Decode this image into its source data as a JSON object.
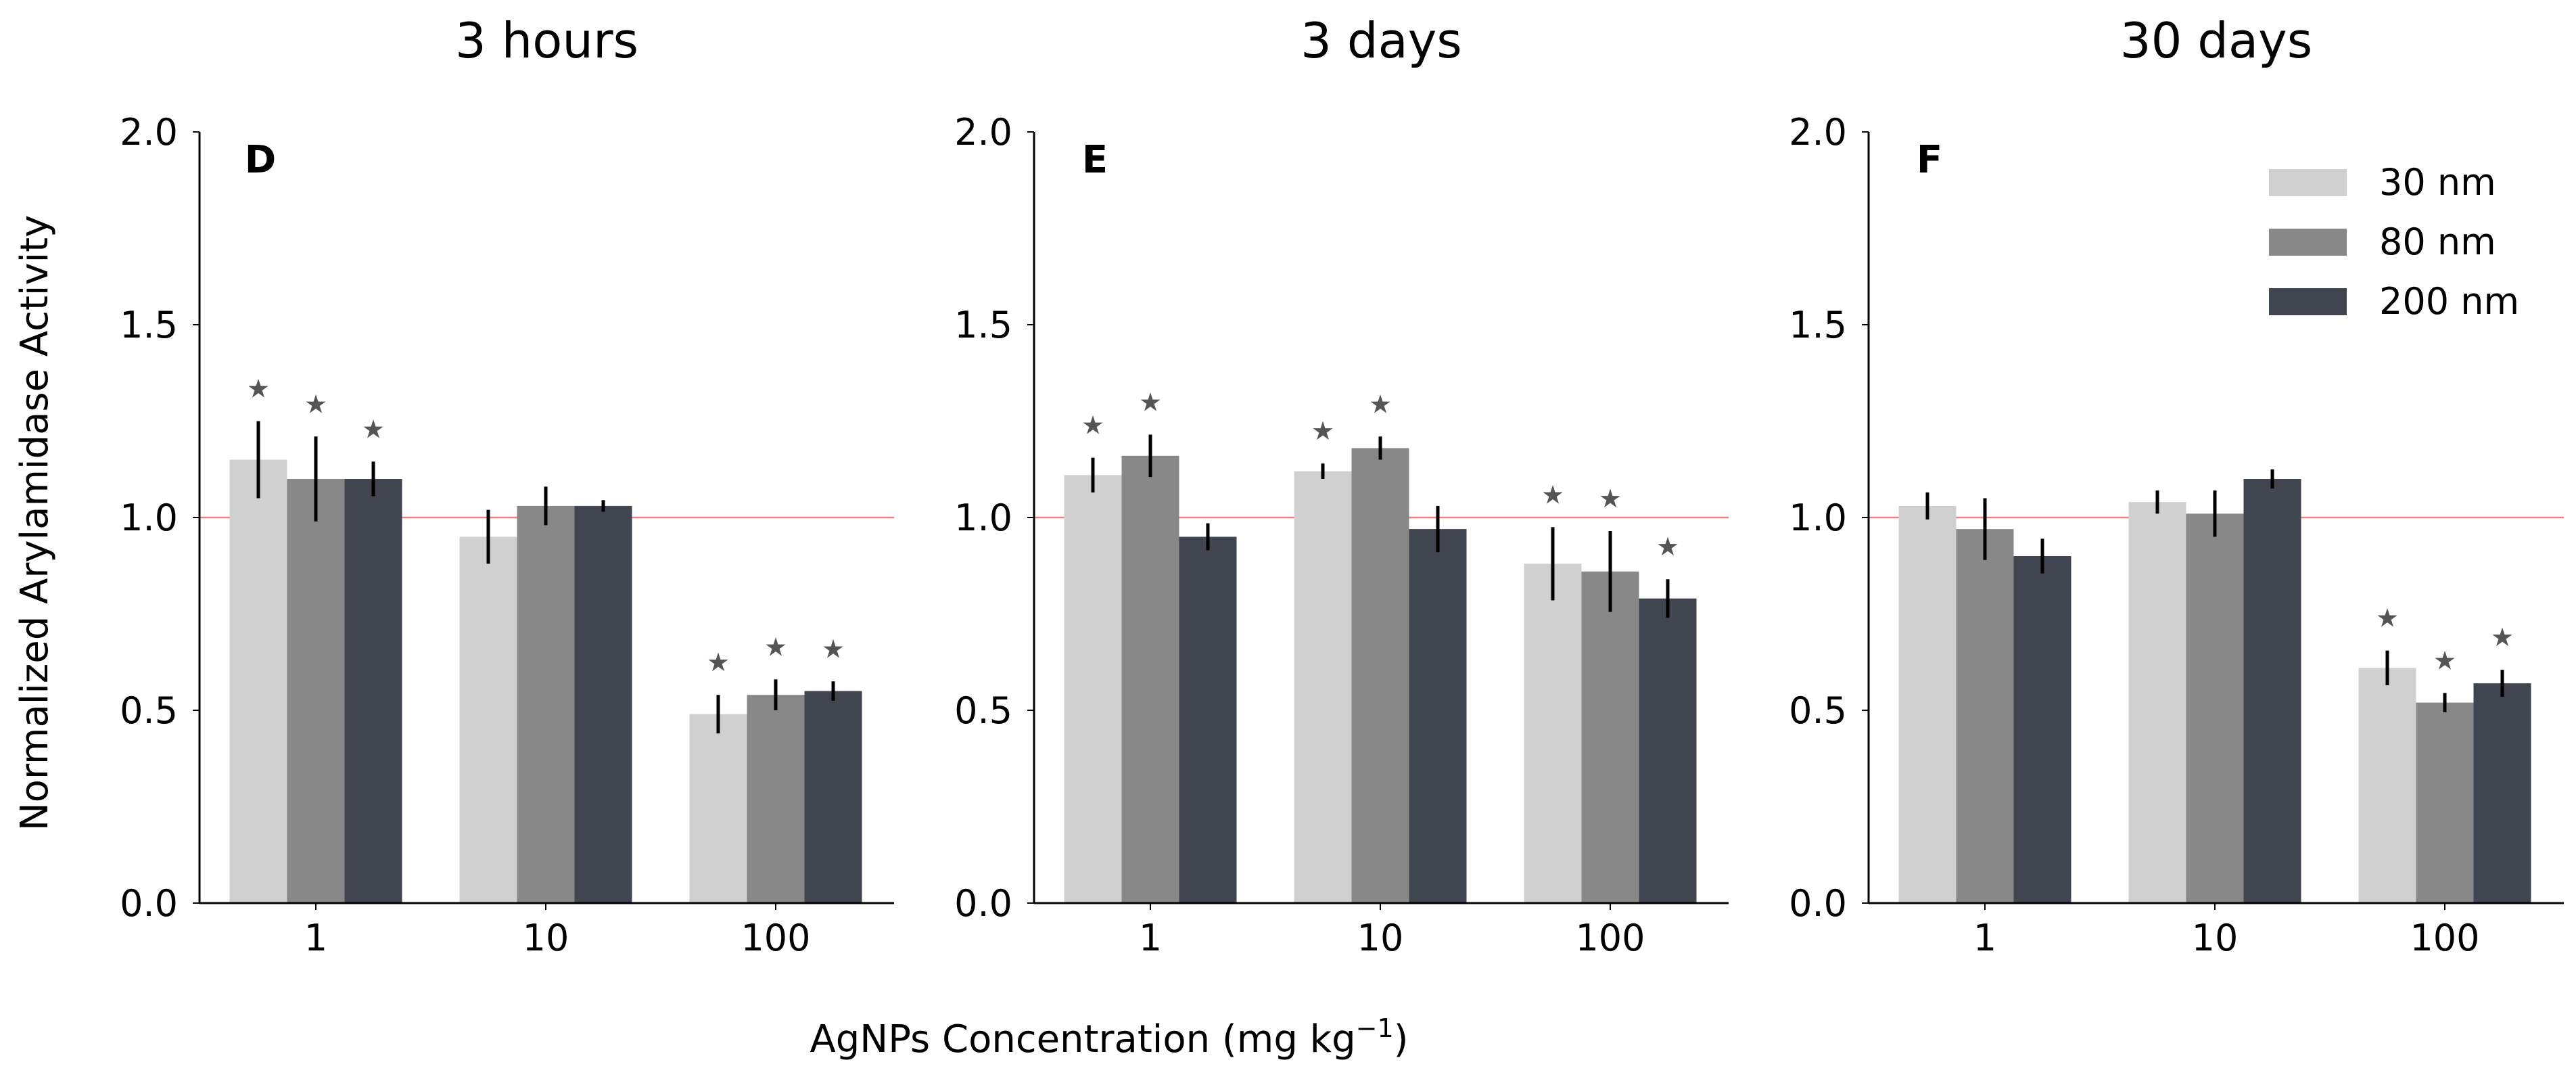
{
  "figure": {
    "ylabel": "Normalized Arylamidase Activity",
    "xlabel_main": "AgNPs Concentration (mg kg",
    "xlabel_sup": "−1",
    "xlabel_end": ")"
  },
  "chart_data": [
    {
      "type": "bar",
      "title": "3 hours",
      "panel_label": "D",
      "categories": [
        "1",
        "10",
        "100"
      ],
      "ylim": [
        0,
        2.0
      ],
      "yticks": [
        "0.0",
        "0.5",
        "1.0",
        "1.5",
        "2.0"
      ],
      "reference_line": 1.0,
      "series": [
        {
          "name": "30 nm",
          "values": [
            1.15,
            0.95,
            0.49
          ],
          "errors": [
            0.1,
            0.07,
            0.05
          ],
          "significant": [
            true,
            false,
            true
          ]
        },
        {
          "name": "80 nm",
          "values": [
            1.1,
            1.03,
            0.54
          ],
          "errors": [
            0.11,
            0.05,
            0.04
          ],
          "significant": [
            true,
            false,
            true
          ]
        },
        {
          "name": "200 nm",
          "values": [
            1.1,
            1.03,
            0.55
          ],
          "errors": [
            0.045,
            0.015,
            0.025
          ],
          "significant": [
            true,
            false,
            true
          ]
        }
      ]
    },
    {
      "type": "bar",
      "title": "3 days",
      "panel_label": "E",
      "categories": [
        "1",
        "10",
        "100"
      ],
      "ylim": [
        0,
        2.0
      ],
      "yticks": [
        "0.0",
        "0.5",
        "1.0",
        "1.5",
        "2.0"
      ],
      "reference_line": 1.0,
      "series": [
        {
          "name": "30 nm",
          "values": [
            1.11,
            1.12,
            0.88
          ],
          "errors": [
            0.045,
            0.02,
            0.095
          ],
          "significant": [
            true,
            true,
            true
          ]
        },
        {
          "name": "80 nm",
          "values": [
            1.16,
            1.18,
            0.86
          ],
          "errors": [
            0.055,
            0.03,
            0.105
          ],
          "significant": [
            true,
            true,
            true
          ]
        },
        {
          "name": "200 nm",
          "values": [
            0.95,
            0.97,
            0.79
          ],
          "errors": [
            0.035,
            0.06,
            0.05
          ],
          "significant": [
            false,
            false,
            true
          ]
        }
      ]
    },
    {
      "type": "bar",
      "title": "30 days",
      "panel_label": "F",
      "categories": [
        "1",
        "10",
        "100"
      ],
      "ylim": [
        0,
        2.0
      ],
      "yticks": [
        "0.0",
        "0.5",
        "1.0",
        "1.5",
        "2.0"
      ],
      "reference_line": 1.0,
      "series": [
        {
          "name": "30 nm",
          "values": [
            1.03,
            1.04,
            0.61
          ],
          "errors": [
            0.035,
            0.03,
            0.045
          ],
          "significant": [
            false,
            false,
            true
          ]
        },
        {
          "name": "80 nm",
          "values": [
            0.97,
            1.01,
            0.52
          ],
          "errors": [
            0.08,
            0.06,
            0.025
          ],
          "significant": [
            false,
            false,
            true
          ]
        },
        {
          "name": "200 nm",
          "values": [
            0.9,
            1.1,
            0.57
          ],
          "errors": [
            0.045,
            0.025,
            0.035
          ],
          "significant": [
            false,
            false,
            true
          ]
        }
      ]
    }
  ],
  "legend": {
    "placement": "top-right",
    "entries": [
      "30 nm",
      "80 nm",
      "200 nm"
    ]
  },
  "colors": {
    "series": [
      "#d0d0d0",
      "#888888",
      "#414550"
    ],
    "error_bar": "#000000",
    "reference_line": "#f08080",
    "star": "#555555",
    "axis": "#000000"
  },
  "star_symbol": "★"
}
